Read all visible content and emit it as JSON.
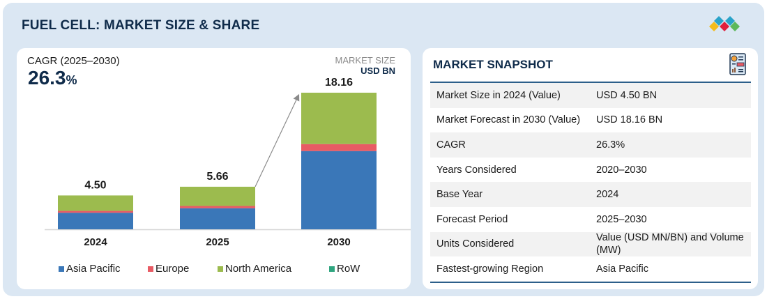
{
  "header": {
    "title": "FUEL CELL: MARKET SIZE & SHARE",
    "logo": "marketsandmarkets-diamond-logo"
  },
  "left": {
    "cagr_label": "CAGR (2025–2030)",
    "cagr_value": "26.3",
    "cagr_unit": "%",
    "market_size_label": "MARKET SIZE",
    "market_size_unit": "USD BN"
  },
  "chart_data": {
    "type": "bar",
    "stacked": true,
    "categories": [
      "2024",
      "2025",
      "2030"
    ],
    "totals": [
      "4.50",
      "5.66",
      "18.16"
    ],
    "series": [
      {
        "name": "Asia Pacific",
        "color": "#3a77b8",
        "values": [
          2.2,
          2.8,
          10.4
        ]
      },
      {
        "name": "Europe",
        "color": "#e85b64",
        "values": [
          0.25,
          0.3,
          0.93
        ]
      },
      {
        "name": "North America",
        "color": "#9cbb4e",
        "values": [
          2.05,
          2.56,
          6.83
        ]
      },
      {
        "name": "RoW",
        "color": "#2fa57f",
        "values": [
          0,
          0,
          0
        ]
      }
    ],
    "ylim": [
      0,
      20
    ],
    "grid": false,
    "legend": "bottom",
    "annotation": "growth arrow from 2025 to 2030"
  },
  "snapshot": {
    "title": "MARKET SNAPSHOT",
    "icon": "report-document-icon",
    "rows": [
      {
        "k": "Market Size in 2024 (Value)",
        "v": "USD 4.50 BN"
      },
      {
        "k": "Market Forecast in 2030 (Value)",
        "v": "USD 18.16 BN"
      },
      {
        "k": "CAGR",
        "v": "26.3%"
      },
      {
        "k": "Years Considered",
        "v": "2020–2030"
      },
      {
        "k": "Base Year",
        "v": "2024"
      },
      {
        "k": "Forecast Period",
        "v": "2025–2030"
      },
      {
        "k": "Units Considered",
        "v": "Value (USD MN/BN) and Volume (MW)"
      },
      {
        "k": "Fastest-growing Region",
        "v": "Asia Pacific"
      }
    ]
  }
}
